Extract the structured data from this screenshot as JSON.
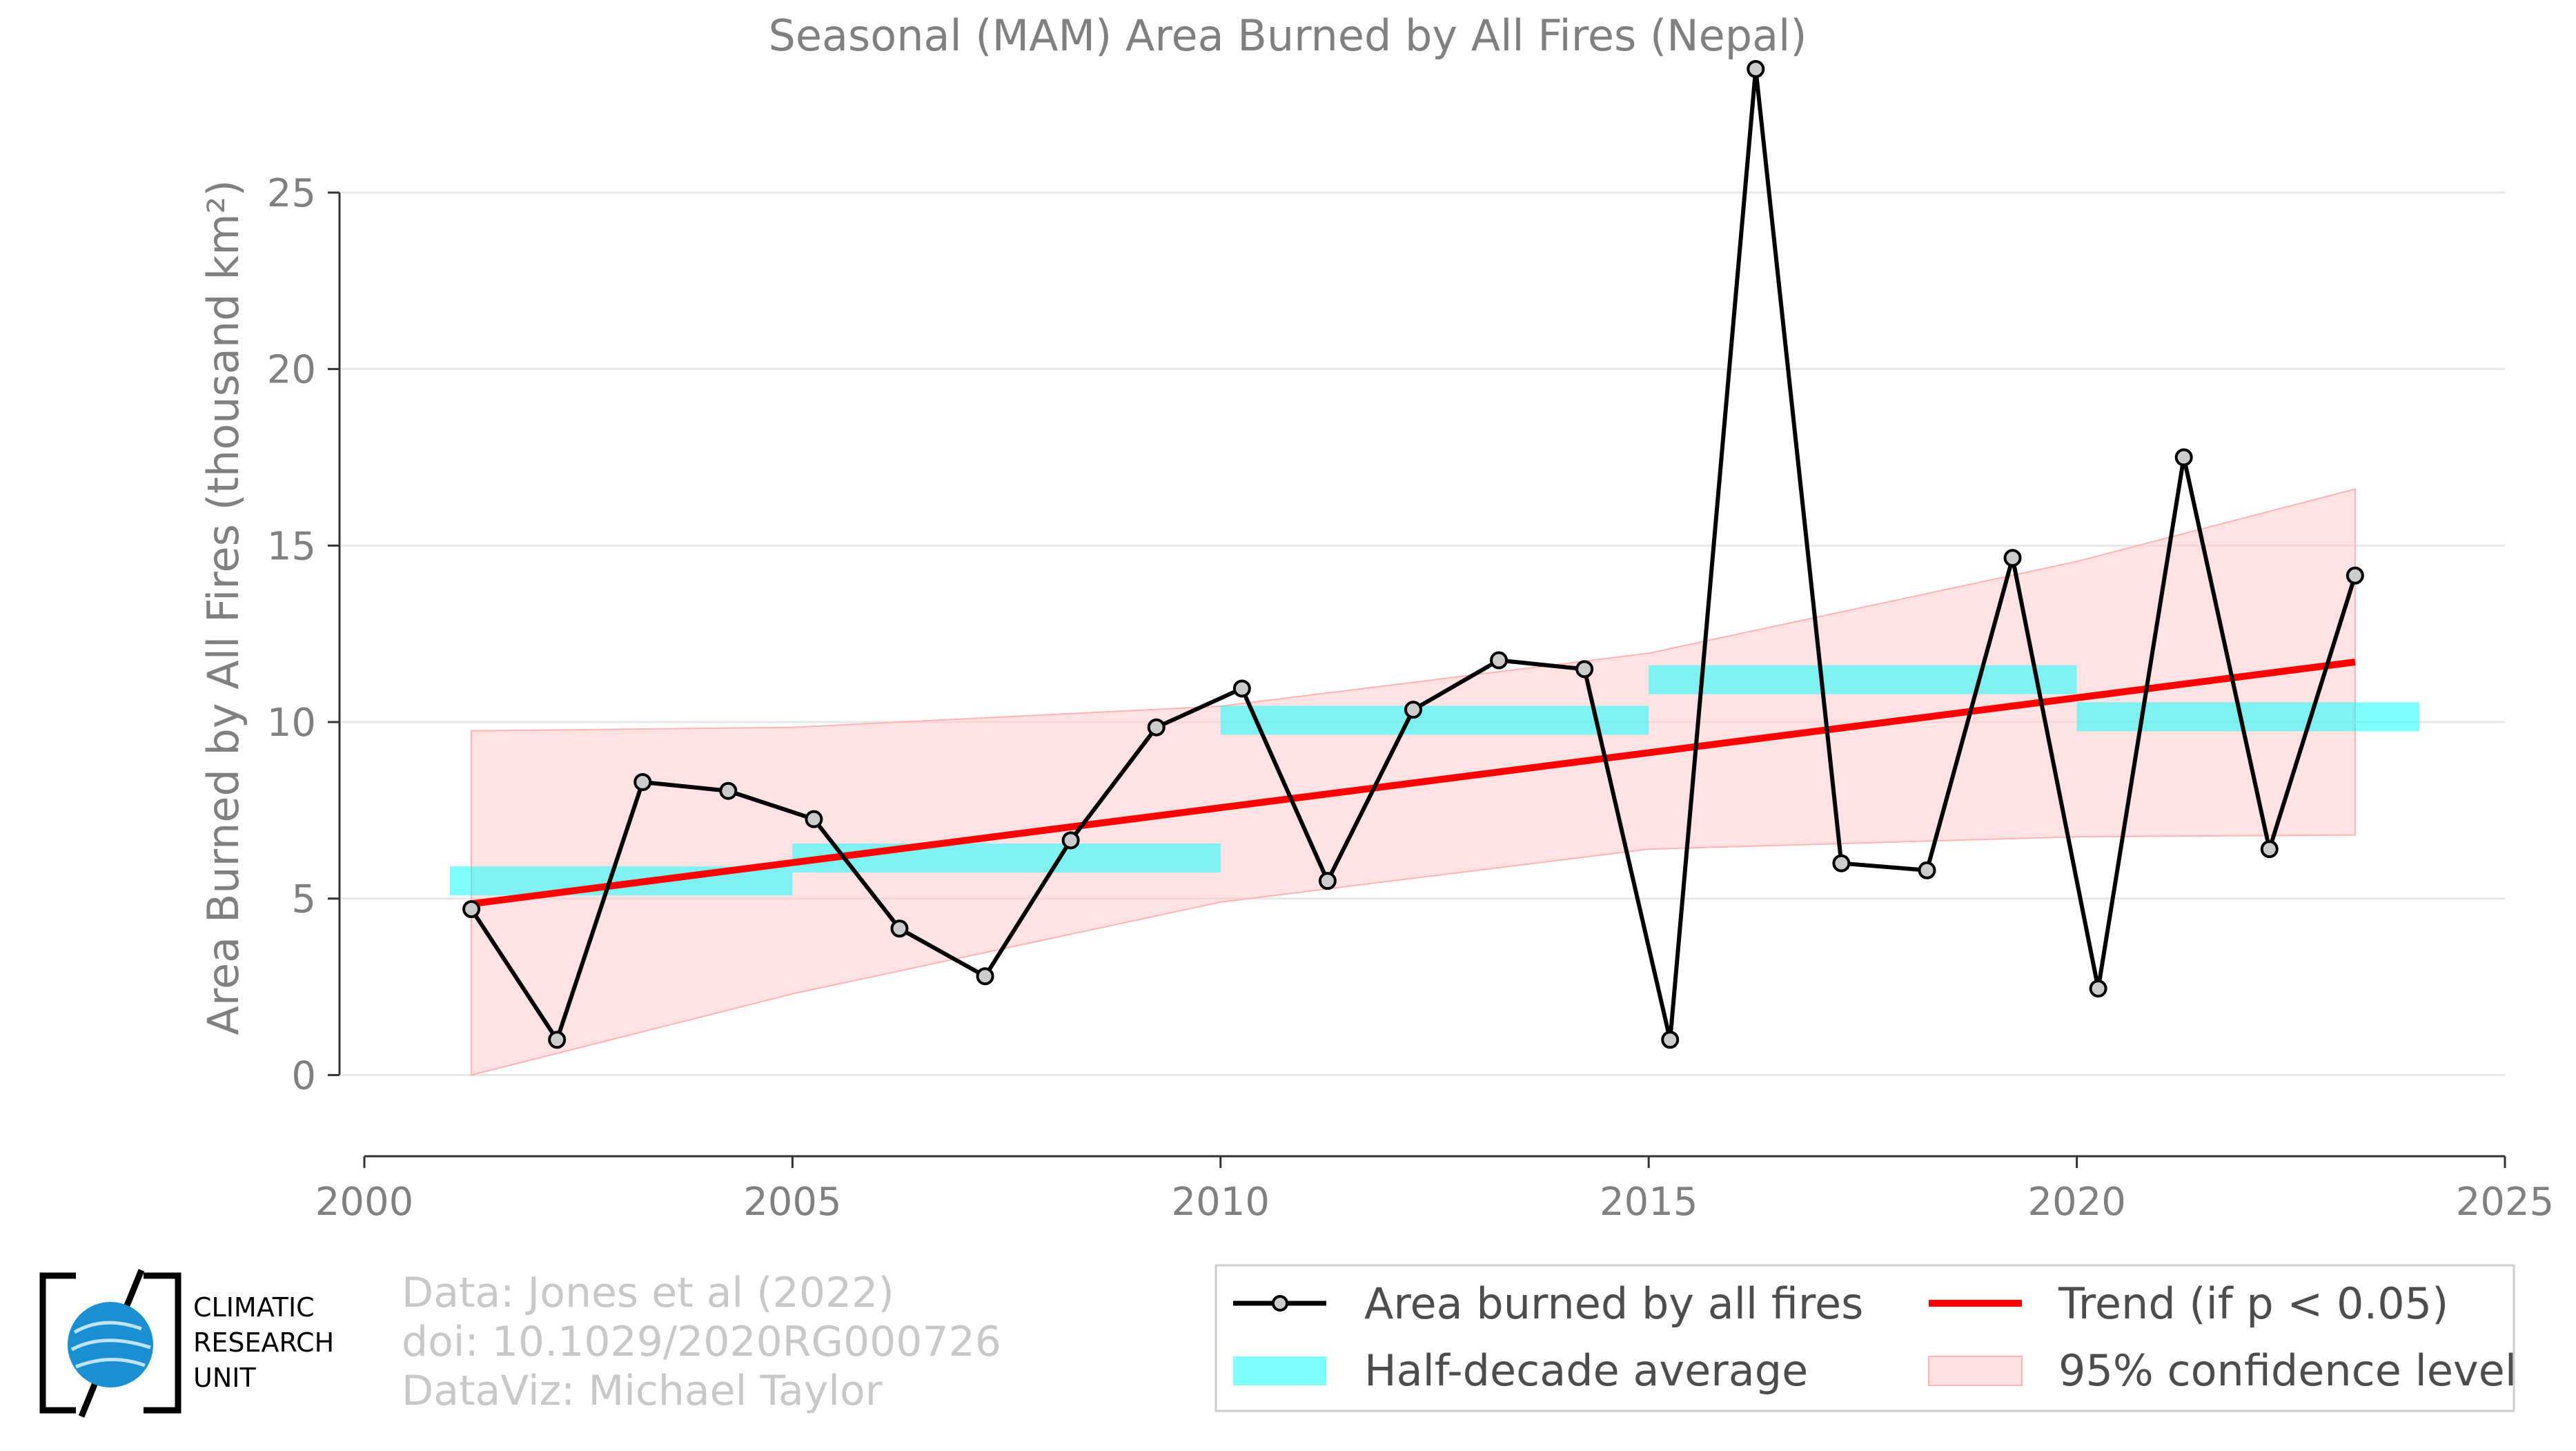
{
  "chart_data": {
    "type": "line",
    "title": "Seasonal (MAM) Area Burned by All Fires (Nepal)",
    "ylabel": "Area Burned by All Fires (thousand km²)",
    "xlabel": "",
    "xlim": [
      2000,
      2025
    ],
    "ylim": [
      -2.3,
      28.5
    ],
    "x_ticks": [
      2000,
      2005,
      2010,
      2015,
      2020,
      2025
    ],
    "y_ticks": [
      0,
      5,
      10,
      15,
      20,
      25
    ],
    "grid": "horizontal",
    "series": [
      {
        "name": "Area burned by all fires",
        "color": "#000000",
        "marker_color": "#cccccc",
        "x": [
          2001.25,
          2002.25,
          2003.25,
          2004.25,
          2005.25,
          2006.25,
          2007.25,
          2008.25,
          2009.25,
          2010.25,
          2011.25,
          2012.25,
          2013.25,
          2014.25,
          2015.25,
          2016.25,
          2017.25,
          2018.25,
          2019.25,
          2020.25,
          2021.25,
          2022.25,
          2023.25
        ],
        "values": [
          4.7,
          1.0,
          8.3,
          8.05,
          7.25,
          4.15,
          2.8,
          6.65,
          9.85,
          10.95,
          5.5,
          10.35,
          11.75,
          11.5,
          1.0,
          28.5,
          6.0,
          5.8,
          14.65,
          2.45,
          17.5,
          6.4,
          14.15
        ]
      }
    ],
    "half_decade_average": {
      "name": "Half-decade average",
      "color": "#00ffff",
      "segments": [
        {
          "x_start": 2001.0,
          "x_end": 2005.0,
          "value": 5.5
        },
        {
          "x_start": 2005.0,
          "x_end": 2010.0,
          "value": 6.15
        },
        {
          "x_start": 2010.0,
          "x_end": 2015.0,
          "value": 10.05
        },
        {
          "x_start": 2015.0,
          "x_end": 2020.0,
          "value": 11.2
        },
        {
          "x_start": 2020.0,
          "x_end": 2024.0,
          "value": 10.15
        }
      ]
    },
    "trend": {
      "name": "Trend (if p < 0.05)",
      "color": "#ff0000",
      "x": [
        2001.25,
        2023.25
      ],
      "values": [
        4.85,
        11.7
      ]
    },
    "confidence_band": {
      "name": "95% confidence level",
      "color": "#ffcccc",
      "x": [
        2001.25,
        2005,
        2010,
        2015,
        2020,
        2023.25
      ],
      "lower": [
        0.0,
        2.3,
        4.9,
        6.4,
        6.75,
        6.8
      ],
      "upper": [
        9.75,
        9.85,
        10.45,
        11.95,
        14.55,
        16.6
      ]
    },
    "legend_position": "bottom-right"
  },
  "credits": {
    "line1": "Data: Jones et al (2022)",
    "line2": "doi: 10.1029/2020RG000726",
    "line3": "DataViz: Michael Taylor"
  },
  "logo": {
    "line1": "CLIMATIC",
    "line2": "RESEARCH",
    "line3": "UNIT"
  }
}
